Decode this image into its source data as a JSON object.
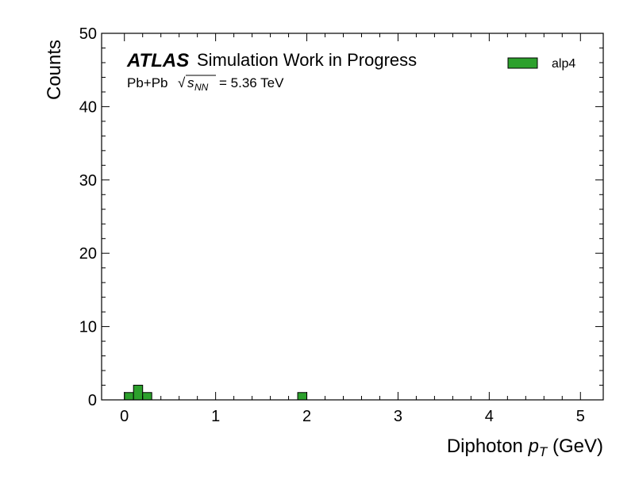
{
  "experiment": {
    "label": "ATLAS",
    "status": "Simulation Work in Progress",
    "energy_prefix": "Pb+Pb",
    "energy_value": "= 5.36 TeV"
  },
  "chart_data": {
    "type": "bar",
    "title": "",
    "xlabel_text": "Diphoton",
    "xlabel_var": "p",
    "xlabel_sub": "T",
    "xlabel_unit": "(GeV)",
    "ylabel": "Counts",
    "xlim": [
      -0.25,
      5.25
    ],
    "ylim": [
      0,
      50
    ],
    "x_ticks": [
      0,
      1,
      2,
      3,
      4,
      5
    ],
    "y_ticks": [
      0,
      10,
      20,
      30,
      40,
      50
    ],
    "series": [
      {
        "name": "alp4",
        "color": "#2ca02c",
        "bins": [
          {
            "lo": 0.0,
            "hi": 0.1,
            "value": 1
          },
          {
            "lo": 0.1,
            "hi": 0.2,
            "value": 2
          },
          {
            "lo": 0.2,
            "hi": 0.3,
            "value": 1
          },
          {
            "lo": 1.9,
            "hi": 2.0,
            "value": 1
          }
        ]
      }
    ],
    "legend_position": "top-right",
    "grid": false
  }
}
